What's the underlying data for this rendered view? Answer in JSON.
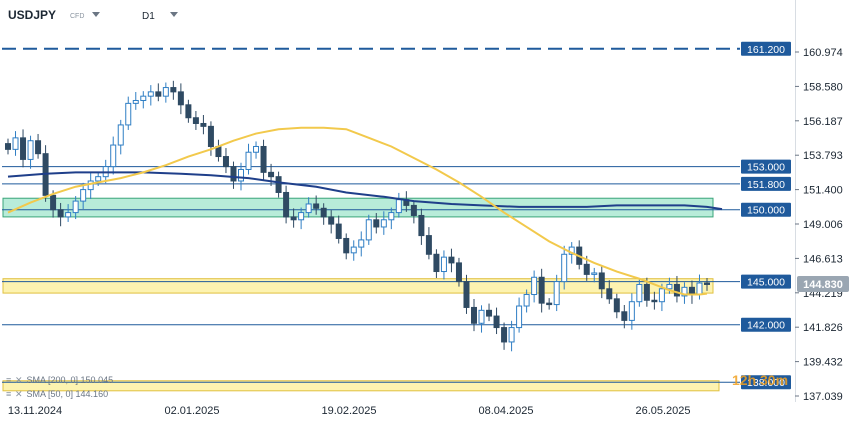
{
  "header": {
    "symbol": "USDJPY",
    "instrument_type": "CFD",
    "timeframe": "D1"
  },
  "indicators": [
    {
      "label": "SMA [200, 0] 150.045",
      "color": "#1f3f8a"
    },
    {
      "label": "SMA [50, 0] 144.160",
      "color": "#f2c94c"
    }
  ],
  "countdown": "12h 30m",
  "chart_data": {
    "type": "candlestick",
    "ylim": [
      137.039,
      162.0
    ],
    "y_ticks": [
      "160.974",
      "158.580",
      "156.187",
      "153.793",
      "151.400",
      "149.006",
      "146.613",
      "144.219",
      "141.826",
      "139.432",
      "137.039"
    ],
    "x_tick_labels": [
      "13.11.2024",
      "02.01.2025",
      "19.02.2025",
      "08.04.2025",
      "26.05.2025"
    ],
    "current_price": "144.830",
    "horizontal_lines": [
      {
        "label": "161.200",
        "value": 161.2,
        "style": "dashed",
        "color": "#1f5a9c"
      },
      {
        "label": "153.000",
        "value": 153.0,
        "style": "solid",
        "color": "#1f5a9c"
      },
      {
        "label": "151.800",
        "value": 151.8,
        "style": "solid",
        "color": "#1f5a9c"
      },
      {
        "label": "150.000",
        "value": 150.0,
        "style": "zone",
        "color": "#1f5a9c",
        "zone": [
          149.5,
          150.8
        ],
        "zone_fill": "#b8ecd9"
      },
      {
        "label": "145.000",
        "value": 145.0,
        "style": "zone",
        "color": "#1f5a9c",
        "zone": [
          144.2,
          145.2
        ],
        "zone_fill": "#fdf3b0"
      },
      {
        "label": "142.000",
        "value": 142.0,
        "style": "solid",
        "color": "#1f5a9c"
      },
      {
        "label": "138.000",
        "value": 138.0,
        "style": "zone",
        "color": "#1f5a9c",
        "zone": [
          137.4,
          138.1
        ],
        "zone_fill": "#fdf3b0"
      }
    ],
    "closes": [
      154.2,
      155.0,
      153.5,
      154.8,
      153.9,
      151.0,
      150.0,
      149.5,
      149.8,
      150.6,
      151.4,
      152.0,
      152.3,
      153.0,
      154.5,
      155.9,
      157.4,
      157.6,
      157.9,
      158.2,
      157.9,
      158.5,
      158.2,
      157.3,
      156.4,
      156.0,
      155.8,
      154.4,
      153.7,
      153.0,
      152.0,
      152.8,
      154.0,
      154.4,
      152.6,
      152.3,
      151.2,
      149.5,
      149.3,
      149.8,
      150.4,
      150.1,
      149.5,
      149.0,
      148.0,
      147.0,
      147.4,
      147.9,
      149.3,
      148.8,
      149.3,
      149.8,
      150.7,
      150.3,
      149.6,
      148.2,
      146.9,
      145.7,
      146.7,
      146.3,
      145.0,
      143.2,
      142.1,
      143.0,
      142.6,
      141.8,
      140.8,
      141.8,
      143.3,
      144.1,
      145.3,
      143.5,
      143.4,
      145.0,
      146.9,
      147.4,
      146.2,
      145.5,
      145.6,
      144.5,
      143.8,
      142.9,
      142.3,
      143.6,
      144.8,
      143.7,
      143.6,
      144.5,
      144.8,
      144.0,
      144.6,
      144.1,
      144.9,
      144.8
    ],
    "sma50": [
      149.8,
      150.5,
      151.1,
      151.6,
      151.9,
      152.2,
      152.6,
      153.1,
      153.7,
      154.2,
      154.8,
      155.3,
      155.6,
      155.7,
      155.7,
      155.6,
      155.0,
      154.4,
      153.6,
      152.8,
      151.9,
      150.9,
      149.8,
      148.8,
      147.8,
      147.0,
      146.3,
      145.7,
      145.2,
      144.8,
      144.4,
      144.1,
      144.1,
      144.16
    ],
    "sma50_x": [
      0,
      3,
      6,
      9,
      12,
      15,
      18,
      21,
      24,
      27,
      30,
      33,
      36,
      39,
      42,
      45,
      48,
      51,
      54,
      57,
      60,
      63,
      66,
      69,
      72,
      75,
      78,
      81,
      84,
      86,
      88,
      90,
      92,
      93
    ],
    "sma200": [
      152.3,
      152.5,
      152.6,
      152.6,
      152.6,
      152.5,
      152.4,
      152.2,
      151.9,
      151.6,
      151.2,
      150.9,
      150.6,
      150.4,
      150.3,
      150.2,
      150.2,
      150.2,
      150.3,
      150.3,
      150.3,
      150.2,
      150.045
    ],
    "sma200_x": [
      0,
      5,
      9,
      14,
      18,
      23,
      27,
      32,
      36,
      41,
      45,
      50,
      54,
      59,
      63,
      68,
      72,
      77,
      81,
      86,
      90,
      93,
      95
    ]
  }
}
